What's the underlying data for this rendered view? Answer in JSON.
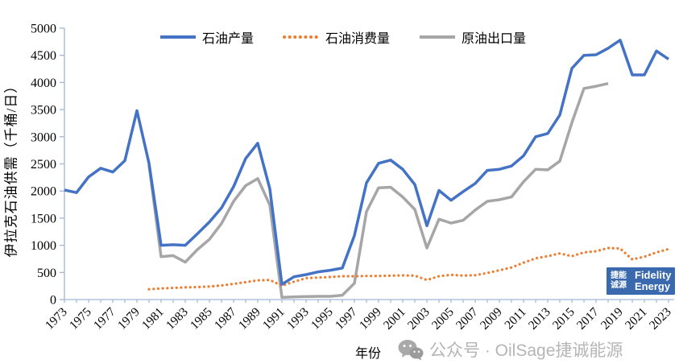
{
  "colors": {
    "production": "#4472C4",
    "consumption": "#ED7D31",
    "exports": "#A6A6A6",
    "axis": "#9FB6D4",
    "text": "#000000",
    "watermark": "#b5b5b5",
    "logo_bg": "#3a6aad"
  },
  "axes": {
    "x_title": "年份",
    "y_title": "伊拉克石油供需（千桶/日）"
  },
  "watermark": {
    "icon": "wechat-icon",
    "text": "公众号 · OilSage捷诚能源"
  },
  "logo": {
    "cn_line1": "捷能",
    "cn_line2": "诚源",
    "en_line1": "Fidelity",
    "en_line2": "Energy"
  },
  "chart_data": {
    "type": "line",
    "title": "",
    "xlabel": "年份",
    "ylabel": "伊拉克石油供需（千桶/日）",
    "ylim": [
      0,
      5000
    ],
    "ytick_step": 500,
    "xtick_label_every": 2,
    "grid": false,
    "legend_position": "top",
    "x": [
      1973,
      1974,
      1975,
      1976,
      1977,
      1978,
      1979,
      1980,
      1981,
      1982,
      1983,
      1984,
      1985,
      1986,
      1987,
      1988,
      1989,
      1990,
      1991,
      1992,
      1993,
      1994,
      1995,
      1996,
      1997,
      1998,
      1999,
      2000,
      2001,
      2002,
      2003,
      2004,
      2005,
      2006,
      2007,
      2008,
      2009,
      2010,
      2011,
      2012,
      2013,
      2014,
      2015,
      2016,
      2017,
      2018,
      2019,
      2020,
      2021,
      2022,
      2023
    ],
    "series": [
      {
        "name": "石油产量",
        "color": "#4472C4",
        "style": "solid",
        "values": [
          2020,
          1970,
          2260,
          2420,
          2350,
          2560,
          3480,
          2510,
          1000,
          1010,
          1000,
          1210,
          1430,
          1690,
          2080,
          2600,
          2880,
          2040,
          280,
          420,
          460,
          510,
          540,
          580,
          1180,
          2150,
          2510,
          2570,
          2400,
          2120,
          1360,
          2010,
          1830,
          1990,
          2140,
          2380,
          2400,
          2460,
          2650,
          3000,
          3060,
          3400,
          4260,
          4500,
          4510,
          4630,
          4780,
          4140,
          4140,
          4580,
          4430
        ]
      },
      {
        "name": "石油消费量",
        "color": "#ED7D31",
        "style": "dotted",
        "values": [
          null,
          null,
          null,
          null,
          null,
          null,
          null,
          190,
          205,
          215,
          225,
          230,
          240,
          260,
          290,
          320,
          355,
          360,
          255,
          330,
          395,
          405,
          415,
          430,
          430,
          435,
          435,
          440,
          445,
          440,
          360,
          430,
          455,
          440,
          450,
          490,
          540,
          590,
          680,
          760,
          800,
          850,
          800,
          870,
          890,
          950,
          940,
          740,
          790,
          870,
          930
        ]
      },
      {
        "name": "原油出口量",
        "color": "#A6A6A6",
        "style": "solid",
        "values": [
          null,
          null,
          null,
          null,
          null,
          null,
          null,
          2480,
          790,
          810,
          690,
          920,
          1110,
          1400,
          1810,
          2100,
          2230,
          1740,
          40,
          50,
          55,
          60,
          60,
          80,
          300,
          1620,
          2060,
          2070,
          1890,
          1660,
          950,
          1480,
          1410,
          1460,
          1650,
          1810,
          1840,
          1890,
          2170,
          2400,
          2390,
          2550,
          3260,
          3890,
          3930,
          3980,
          null,
          null,
          null,
          null,
          null
        ]
      }
    ]
  }
}
